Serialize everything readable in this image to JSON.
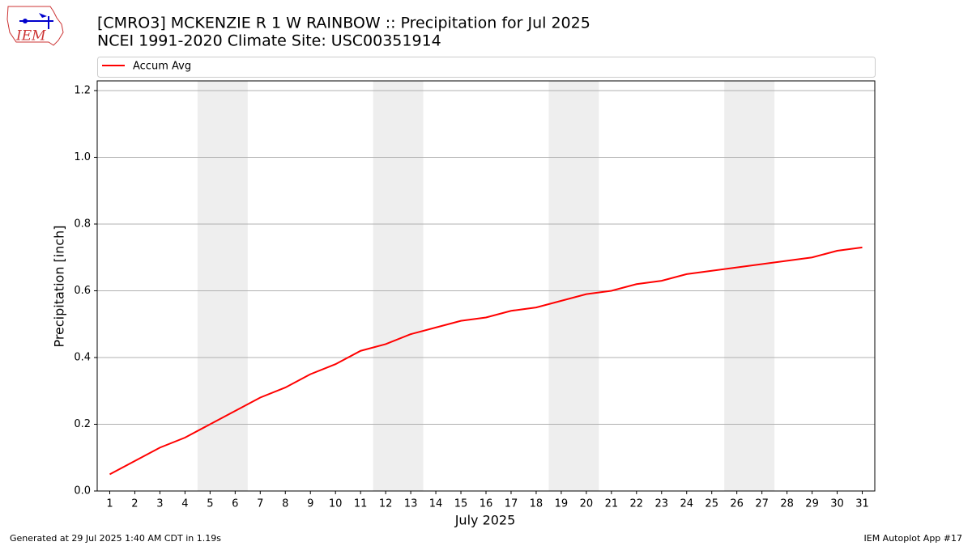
{
  "chart_data": {
    "type": "line",
    "title": "[CMRO3] MCKENZIE R 1 W RAINBOW :: Precipitation for Jul 2025",
    "subtitle": "NCEI 1991-2020 Climate Site: USC00351914",
    "xlabel": "July 2025",
    "ylabel": "Precipitation [inch]",
    "x": [
      1,
      2,
      3,
      4,
      5,
      6,
      7,
      8,
      9,
      10,
      11,
      12,
      13,
      14,
      15,
      16,
      17,
      18,
      19,
      20,
      21,
      22,
      23,
      24,
      25,
      26,
      27,
      28,
      29,
      30,
      31
    ],
    "series": [
      {
        "name": "Accum Avg",
        "color": "#ff0000",
        "values": [
          0.05,
          0.09,
          0.13,
          0.16,
          0.2,
          0.24,
          0.28,
          0.31,
          0.35,
          0.38,
          0.42,
          0.44,
          0.47,
          0.49,
          0.51,
          0.52,
          0.54,
          0.55,
          0.57,
          0.59,
          0.6,
          0.62,
          0.63,
          0.65,
          0.66,
          0.67,
          0.68,
          0.69,
          0.7,
          0.72,
          0.73
        ]
      }
    ],
    "weekend_spans": [
      [
        4.5,
        6.5
      ],
      [
        11.5,
        13.5
      ],
      [
        18.5,
        20.5
      ],
      [
        25.5,
        27.5
      ]
    ],
    "xlim": [
      0.5,
      31.5
    ],
    "ylim": [
      0,
      1.229
    ],
    "xticks": [
      1,
      2,
      3,
      4,
      5,
      6,
      7,
      8,
      9,
      10,
      11,
      12,
      13,
      14,
      15,
      16,
      17,
      18,
      19,
      20,
      21,
      22,
      23,
      24,
      25,
      26,
      27,
      28,
      29,
      30,
      31
    ],
    "yticks": [
      {
        "value": 0,
        "label": "0.0"
      },
      0.2,
      0.4,
      0.6,
      0.8,
      {
        "value": 1,
        "label": "1.0"
      },
      1.2
    ],
    "grid": true,
    "legend": "top"
  },
  "footer_left": "Generated at 29 Jul 2025 1:40 AM CDT in 1.19s",
  "footer_right": "IEM Autoplot App #17",
  "logo_text": "IEM"
}
